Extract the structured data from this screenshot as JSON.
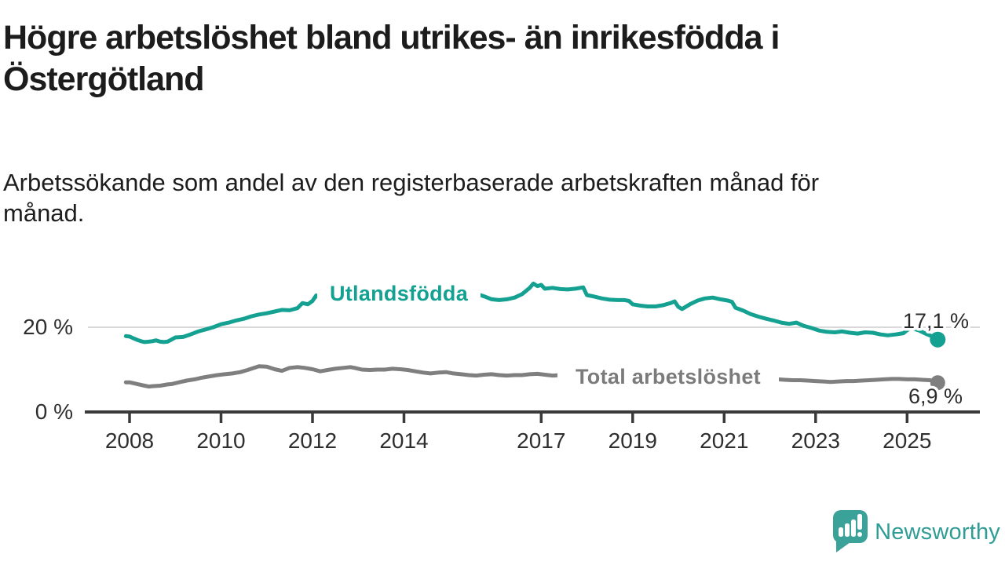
{
  "header": {
    "title": "Högre arbetslöshet bland utrikes- än inrikesfödda i\nÖstergötland",
    "subtitle": "Arbetssökande som andel av den registerbaserade arbetskraften månad för\nmånad."
  },
  "chart_data": {
    "type": "line",
    "unit": "%",
    "grid": "single horizontal gridline at 20 %",
    "legend_position": "inline labels on lines",
    "x_ticks": [
      2008,
      2010,
      2012,
      2014,
      2017,
      2019,
      2021,
      2023,
      2025
    ],
    "y_ticks": [
      {
        "value": 0,
        "label": "0 %"
      },
      {
        "value": 20,
        "label": "20 %"
      }
    ],
    "xlim": [
      2007.9,
      2025.9
    ],
    "ylim": [
      0,
      33
    ],
    "colors": {
      "utlandsfodda": "#14a191",
      "total": "#7f7f7f",
      "gridline": "#d9d9d9",
      "axis": "#3a3a3a"
    },
    "series": [
      {
        "name": "Utlandsfödda",
        "color": "#14a191",
        "end_label": "17,1 %",
        "end_value": 17.1,
        "points": [
          [
            2007.92,
            17.9
          ],
          [
            2008.0,
            17.8
          ],
          [
            2008.08,
            17.4
          ],
          [
            2008.17,
            17.0
          ],
          [
            2008.25,
            16.7
          ],
          [
            2008.33,
            16.5
          ],
          [
            2008.42,
            16.6
          ],
          [
            2008.5,
            16.7
          ],
          [
            2008.58,
            16.9
          ],
          [
            2008.67,
            16.6
          ],
          [
            2008.75,
            16.5
          ],
          [
            2008.83,
            16.6
          ],
          [
            2008.92,
            17.1
          ],
          [
            2009.0,
            17.6
          ],
          [
            2009.17,
            17.7
          ],
          [
            2009.33,
            18.3
          ],
          [
            2009.5,
            19.0
          ],
          [
            2009.67,
            19.5
          ],
          [
            2009.83,
            20.0
          ],
          [
            2010.0,
            20.7
          ],
          [
            2010.17,
            21.1
          ],
          [
            2010.33,
            21.6
          ],
          [
            2010.5,
            22.0
          ],
          [
            2010.67,
            22.6
          ],
          [
            2010.83,
            23.0
          ],
          [
            2011.0,
            23.3
          ],
          [
            2011.17,
            23.7
          ],
          [
            2011.33,
            24.1
          ],
          [
            2011.5,
            24.0
          ],
          [
            2011.67,
            24.5
          ],
          [
            2011.78,
            25.7
          ],
          [
            2011.9,
            25.4
          ],
          [
            2012.0,
            26.2
          ],
          [
            2012.08,
            27.5
          ],
          [
            2012.17,
            26.8
          ],
          [
            2012.25,
            27.1
          ],
          [
            2012.42,
            26.7
          ],
          [
            2012.58,
            26.9
          ],
          [
            2012.75,
            27.1
          ],
          [
            2012.92,
            27.3
          ],
          [
            2013.08,
            26.9
          ],
          [
            2013.25,
            27.1
          ],
          [
            2013.42,
            27.3
          ],
          [
            2013.58,
            27.0
          ],
          [
            2013.75,
            27.4
          ],
          [
            2013.92,
            27.2
          ],
          [
            2014.08,
            27.0
          ],
          [
            2014.25,
            27.3
          ],
          [
            2014.42,
            27.5
          ],
          [
            2014.58,
            27.2
          ],
          [
            2014.75,
            27.5
          ],
          [
            2014.92,
            27.7
          ],
          [
            2015.08,
            27.4
          ],
          [
            2015.25,
            27.6
          ],
          [
            2015.42,
            27.9
          ],
          [
            2015.58,
            27.9
          ],
          [
            2015.75,
            27.3
          ],
          [
            2015.92,
            26.6
          ],
          [
            2016.08,
            26.4
          ],
          [
            2016.25,
            26.6
          ],
          [
            2016.42,
            27.0
          ],
          [
            2016.58,
            27.8
          ],
          [
            2016.75,
            29.3
          ],
          [
            2016.83,
            30.3
          ],
          [
            2016.92,
            29.7
          ],
          [
            2017.0,
            30.0
          ],
          [
            2017.08,
            29.1
          ],
          [
            2017.25,
            29.3
          ],
          [
            2017.42,
            29.0
          ],
          [
            2017.58,
            28.9
          ],
          [
            2017.75,
            29.1
          ],
          [
            2017.92,
            29.4
          ],
          [
            2018.0,
            27.6
          ],
          [
            2018.17,
            27.2
          ],
          [
            2018.33,
            26.8
          ],
          [
            2018.5,
            26.5
          ],
          [
            2018.67,
            26.4
          ],
          [
            2018.83,
            26.4
          ],
          [
            2018.92,
            26.2
          ],
          [
            2019.0,
            25.4
          ],
          [
            2019.17,
            25.1
          ],
          [
            2019.33,
            24.9
          ],
          [
            2019.5,
            24.9
          ],
          [
            2019.67,
            25.2
          ],
          [
            2019.83,
            25.7
          ],
          [
            2019.92,
            26.1
          ],
          [
            2020.0,
            24.8
          ],
          [
            2020.08,
            24.3
          ],
          [
            2020.25,
            25.4
          ],
          [
            2020.42,
            26.3
          ],
          [
            2020.58,
            26.8
          ],
          [
            2020.75,
            27.0
          ],
          [
            2020.92,
            26.6
          ],
          [
            2021.08,
            26.3
          ],
          [
            2021.17,
            26.0
          ],
          [
            2021.25,
            24.6
          ],
          [
            2021.42,
            23.9
          ],
          [
            2021.58,
            23.1
          ],
          [
            2021.75,
            22.5
          ],
          [
            2021.92,
            22.0
          ],
          [
            2022.08,
            21.6
          ],
          [
            2022.25,
            21.1
          ],
          [
            2022.42,
            20.8
          ],
          [
            2022.58,
            21.1
          ],
          [
            2022.75,
            20.3
          ],
          [
            2022.92,
            19.8
          ],
          [
            2023.08,
            19.2
          ],
          [
            2023.25,
            18.9
          ],
          [
            2023.42,
            18.8
          ],
          [
            2023.58,
            19.0
          ],
          [
            2023.75,
            18.7
          ],
          [
            2023.92,
            18.5
          ],
          [
            2024.08,
            18.8
          ],
          [
            2024.25,
            18.7
          ],
          [
            2024.42,
            18.3
          ],
          [
            2024.58,
            18.1
          ],
          [
            2024.75,
            18.3
          ],
          [
            2024.92,
            18.6
          ],
          [
            2025.0,
            19.3
          ],
          [
            2025.08,
            19.8
          ],
          [
            2025.25,
            19.3
          ],
          [
            2025.42,
            18.4
          ],
          [
            2025.58,
            17.7
          ],
          [
            2025.67,
            17.1
          ]
        ]
      },
      {
        "name": "Total arbetslöshet",
        "color": "#7f7f7f",
        "end_label": "6,9 %",
        "end_value": 6.9,
        "points": [
          [
            2007.92,
            7.0
          ],
          [
            2008.0,
            7.0
          ],
          [
            2008.17,
            6.6
          ],
          [
            2008.33,
            6.2
          ],
          [
            2008.42,
            6.0
          ],
          [
            2008.5,
            6.1
          ],
          [
            2008.67,
            6.2
          ],
          [
            2008.83,
            6.5
          ],
          [
            2008.92,
            6.6
          ],
          [
            2009.08,
            7.0
          ],
          [
            2009.25,
            7.4
          ],
          [
            2009.42,
            7.7
          ],
          [
            2009.58,
            8.1
          ],
          [
            2009.75,
            8.4
          ],
          [
            2009.92,
            8.7
          ],
          [
            2010.08,
            8.9
          ],
          [
            2010.25,
            9.1
          ],
          [
            2010.42,
            9.4
          ],
          [
            2010.58,
            9.9
          ],
          [
            2010.75,
            10.5
          ],
          [
            2010.83,
            10.8
          ],
          [
            2011.0,
            10.7
          ],
          [
            2011.17,
            10.1
          ],
          [
            2011.33,
            9.7
          ],
          [
            2011.5,
            10.4
          ],
          [
            2011.67,
            10.6
          ],
          [
            2011.83,
            10.4
          ],
          [
            2012.0,
            10.1
          ],
          [
            2012.17,
            9.6
          ],
          [
            2012.33,
            9.9
          ],
          [
            2012.5,
            10.2
          ],
          [
            2012.67,
            10.4
          ],
          [
            2012.83,
            10.6
          ],
          [
            2012.92,
            10.4
          ],
          [
            2013.08,
            10.0
          ],
          [
            2013.25,
            9.9
          ],
          [
            2013.42,
            10.0
          ],
          [
            2013.58,
            10.0
          ],
          [
            2013.75,
            10.2
          ],
          [
            2013.92,
            10.1
          ],
          [
            2014.08,
            9.9
          ],
          [
            2014.25,
            9.6
          ],
          [
            2014.42,
            9.3
          ],
          [
            2014.58,
            9.1
          ],
          [
            2014.75,
            9.3
          ],
          [
            2014.92,
            9.4
          ],
          [
            2015.08,
            9.1
          ],
          [
            2015.25,
            8.9
          ],
          [
            2015.42,
            8.7
          ],
          [
            2015.58,
            8.6
          ],
          [
            2015.75,
            8.8
          ],
          [
            2015.92,
            8.9
          ],
          [
            2016.08,
            8.7
          ],
          [
            2016.25,
            8.6
          ],
          [
            2016.42,
            8.7
          ],
          [
            2016.58,
            8.7
          ],
          [
            2016.75,
            8.9
          ],
          [
            2016.92,
            9.0
          ],
          [
            2017.08,
            8.8
          ],
          [
            2017.25,
            8.6
          ],
          [
            2017.42,
            8.7
          ],
          [
            2017.58,
            8.5
          ],
          [
            2017.75,
            8.4
          ],
          [
            2018.0,
            8.2
          ],
          [
            2018.25,
            8.1
          ],
          [
            2018.5,
            8.0
          ],
          [
            2018.75,
            7.9
          ],
          [
            2019.0,
            7.8
          ],
          [
            2019.25,
            7.7
          ],
          [
            2019.5,
            7.7
          ],
          [
            2019.75,
            7.8
          ],
          [
            2020.0,
            8.1
          ],
          [
            2020.25,
            8.9
          ],
          [
            2020.5,
            9.3
          ],
          [
            2020.75,
            9.1
          ],
          [
            2021.0,
            8.8
          ],
          [
            2021.25,
            8.5
          ],
          [
            2021.5,
            8.2
          ],
          [
            2021.75,
            8.0
          ],
          [
            2022.0,
            7.8
          ],
          [
            2022.17,
            7.7
          ],
          [
            2022.33,
            7.6
          ],
          [
            2022.5,
            7.5
          ],
          [
            2022.67,
            7.5
          ],
          [
            2022.83,
            7.4
          ],
          [
            2023.0,
            7.3
          ],
          [
            2023.17,
            7.2
          ],
          [
            2023.33,
            7.1
          ],
          [
            2023.5,
            7.2
          ],
          [
            2023.67,
            7.3
          ],
          [
            2023.83,
            7.3
          ],
          [
            2024.0,
            7.4
          ],
          [
            2024.17,
            7.5
          ],
          [
            2024.33,
            7.6
          ],
          [
            2024.5,
            7.7
          ],
          [
            2024.67,
            7.8
          ],
          [
            2024.83,
            7.8
          ],
          [
            2025.0,
            7.7
          ],
          [
            2025.17,
            7.7
          ],
          [
            2025.33,
            7.6
          ],
          [
            2025.5,
            7.5
          ],
          [
            2025.58,
            7.3
          ],
          [
            2025.67,
            6.9
          ]
        ]
      }
    ]
  },
  "footer": {
    "brand": "Newsworthy",
    "logo_icon": "newsworthy-speech-bubble-bar-chart-icon"
  }
}
